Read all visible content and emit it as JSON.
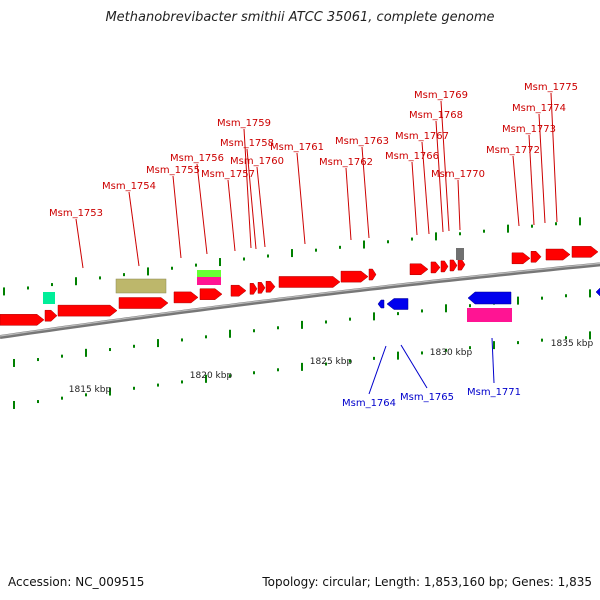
{
  "title": "Methanobrevibacter smithii ATCC 35061, complete genome",
  "accession": "Accession: NC_009515",
  "summary": "Topology: circular; Length: 1,853,160 bp; Genes: 1,835",
  "colors": {
    "forward_gene": "#ff0000",
    "reverse_gene": "#0000ee",
    "forward_label": "#cc0000",
    "reverse_label": "#0000cc",
    "backbone": "#888888",
    "tick": "#008000",
    "khaki_feature": "#bdb76b",
    "magenta_feature": "#ff1493",
    "cyan_feature": "#00ee99",
    "green_feature": "#66ff33",
    "gray_feature": "#707070"
  },
  "scale": {
    "labels": [
      "1815 kbp",
      "1820 kbp",
      "1825 kbp",
      "1830 kbp",
      "1835 kbp"
    ]
  },
  "forward_genes": [
    "Msm_1753",
    "Msm_1754",
    "Msm_1755",
    "Msm_1756",
    "Msm_1757",
    "Msm_1758",
    "Msm_1759",
    "Msm_1760",
    "Msm_1761",
    "Msm_1762",
    "Msm_1763",
    "Msm_1766",
    "Msm_1767",
    "Msm_1768",
    "Msm_1769",
    "Msm_1770",
    "Msm_1772",
    "Msm_1773",
    "Msm_1774",
    "Msm_1775"
  ],
  "reverse_genes": [
    "Msm_1764",
    "Msm_1765",
    "Msm_1771"
  ]
}
